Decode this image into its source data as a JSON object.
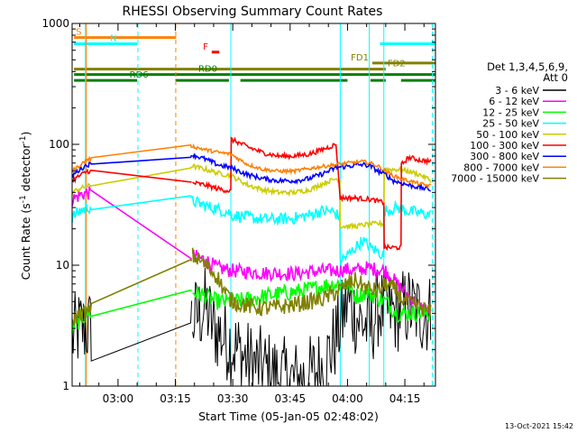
{
  "chart_data": {
    "type": "line",
    "title": "RHESSI Observing Summary Count Rates",
    "xlabel": "Start Time (05-Jan-05 02:48:02)",
    "ylabel_main": "Count Rate (s",
    "ylabel_exp1": "-1",
    "ylabel_mid": " detector",
    "ylabel_exp2": "-1",
    "ylabel_end": ")",
    "yscale": "log",
    "ylim": [
      1,
      1000
    ],
    "xlim_min": [
      168,
      263
    ],
    "x_ticks": [
      {
        "min": 180,
        "label": "03:00"
      },
      {
        "min": 195,
        "label": "03:15"
      },
      {
        "min": 210,
        "label": "03:30"
      },
      {
        "min": 225,
        "label": "03:45"
      },
      {
        "min": 240,
        "label": "04:00"
      },
      {
        "min": 255,
        "label": "04:15"
      }
    ],
    "y_ticks": [
      {
        "v": 1,
        "label": "1"
      },
      {
        "v": 10,
        "label": "10"
      },
      {
        "v": 100,
        "label": "100"
      },
      {
        "v": 1000,
        "label": "1000"
      }
    ],
    "legend_title_1": "Det 1,3,4,5,6,9,",
    "legend_title_2": "Att 0",
    "series": [
      {
        "name": "3 - 6 keV",
        "color": "#000000",
        "points": [
          [
            168,
            2.5
          ],
          [
            170,
            3
          ],
          [
            172,
            3
          ],
          [
            199.5,
            3.5
          ],
          [
            203,
            4.5
          ],
          [
            205,
            3
          ],
          [
            208,
            2.5
          ],
          [
            211,
            2
          ],
          [
            214,
            1.6
          ],
          [
            218,
            1.4
          ],
          [
            222,
            1.2
          ],
          [
            226,
            1.1
          ],
          [
            230,
            1.2
          ],
          [
            234,
            1.5
          ],
          [
            237,
            2.5
          ],
          [
            240,
            5
          ],
          [
            243,
            3.5
          ],
          [
            246,
            3
          ],
          [
            248,
            4.5
          ],
          [
            252,
            4
          ],
          [
            256,
            4.5
          ],
          [
            259,
            4
          ],
          [
            262,
            4
          ]
        ]
      },
      {
        "name": "6 - 12 keV",
        "color": "#ff00ff",
        "points": [
          [
            168,
            35
          ],
          [
            170,
            38
          ],
          [
            172,
            40
          ],
          [
            199.5,
            12
          ],
          [
            203,
            11
          ],
          [
            206,
            9.5
          ],
          [
            210,
            9
          ],
          [
            214,
            8.8
          ],
          [
            218,
            8.6
          ],
          [
            222,
            8.6
          ],
          [
            226,
            8.5
          ],
          [
            230,
            8.8
          ],
          [
            234,
            9
          ],
          [
            237,
            9
          ],
          [
            240,
            9.2
          ],
          [
            242,
            9
          ],
          [
            245,
            9.5
          ],
          [
            250,
            9
          ],
          [
            253,
            7
          ],
          [
            255,
            6
          ],
          [
            259,
            4.5
          ],
          [
            262,
            4
          ]
        ]
      },
      {
        "name": "12 - 25 keV",
        "color": "#00ff00",
        "points": [
          [
            168,
            3
          ],
          [
            170,
            3.5
          ],
          [
            172,
            4
          ],
          [
            199.5,
            6
          ],
          [
            203,
            5.5
          ],
          [
            206,
            5
          ],
          [
            210,
            5
          ],
          [
            214,
            5.2
          ],
          [
            218,
            5.5
          ],
          [
            222,
            5.8
          ],
          [
            226,
            6
          ],
          [
            230,
            6.3
          ],
          [
            234,
            6.8
          ],
          [
            237,
            7
          ],
          [
            240,
            7
          ],
          [
            242,
            5.5
          ],
          [
            245,
            6
          ],
          [
            250,
            5
          ],
          [
            253,
            4
          ],
          [
            255,
            4
          ],
          [
            259,
            4
          ],
          [
            262,
            4
          ]
        ]
      },
      {
        "name": "25 - 50 keV",
        "color": "#00ffff",
        "points": [
          [
            168,
            25
          ],
          [
            170,
            28
          ],
          [
            172,
            30
          ],
          [
            199.5,
            34
          ],
          [
            203,
            31
          ],
          [
            206,
            29
          ],
          [
            209.5,
            27
          ],
          [
            209.6,
            26
          ],
          [
            214,
            25
          ],
          [
            218,
            24
          ],
          [
            222,
            24
          ],
          [
            226,
            24.5
          ],
          [
            230,
            26
          ],
          [
            233,
            28
          ],
          [
            236,
            28
          ],
          [
            238,
            25
          ],
          [
            238.1,
            11
          ],
          [
            240,
            12
          ],
          [
            242,
            14
          ],
          [
            244,
            16
          ],
          [
            246,
            14
          ],
          [
            248,
            13
          ],
          [
            249.5,
            12
          ],
          [
            249.6,
            28
          ],
          [
            253,
            30
          ],
          [
            256,
            28
          ],
          [
            259,
            27
          ],
          [
            262,
            26
          ]
        ]
      },
      {
        "name": "50 - 100 keV",
        "color": "#cccc00",
        "points": [
          [
            168,
            40
          ],
          [
            170,
            43
          ],
          [
            172,
            45
          ],
          [
            199.5,
            66
          ],
          [
            203,
            62
          ],
          [
            206,
            58
          ],
          [
            209.5,
            55
          ],
          [
            214,
            46
          ],
          [
            218,
            42
          ],
          [
            222,
            40
          ],
          [
            226,
            40
          ],
          [
            230,
            42
          ],
          [
            234,
            48
          ],
          [
            237,
            52
          ],
          [
            238,
            50
          ],
          [
            238.1,
            21
          ],
          [
            242,
            21
          ],
          [
            246,
            22
          ],
          [
            249.5,
            22
          ],
          [
            249.6,
            62
          ],
          [
            253,
            62
          ],
          [
            256,
            60
          ],
          [
            259,
            56
          ],
          [
            262,
            50
          ]
        ]
      },
      {
        "name": "100 - 300 keV",
        "color": "#ff0000",
        "points": [
          [
            168,
            50
          ],
          [
            170,
            55
          ],
          [
            172,
            60
          ],
          [
            199.5,
            48
          ],
          [
            203,
            46
          ],
          [
            206,
            43
          ],
          [
            209.5,
            41
          ],
          [
            209.6,
            110
          ],
          [
            214,
            95
          ],
          [
            218,
            85
          ],
          [
            222,
            80
          ],
          [
            226,
            80
          ],
          [
            230,
            83
          ],
          [
            234,
            92
          ],
          [
            237,
            100
          ],
          [
            238.1,
            36
          ],
          [
            242,
            36
          ],
          [
            246,
            35
          ],
          [
            249.5,
            33
          ],
          [
            249.6,
            14
          ],
          [
            253,
            14
          ],
          [
            254,
            14
          ],
          [
            254.1,
            68
          ],
          [
            256,
            78
          ],
          [
            259,
            74
          ],
          [
            262,
            72
          ]
        ]
      },
      {
        "name": "300 - 800 keV",
        "color": "#0000ff",
        "points": [
          [
            168,
            55
          ],
          [
            170,
            62
          ],
          [
            172,
            68
          ],
          [
            199.5,
            82
          ],
          [
            203,
            75
          ],
          [
            206,
            68
          ],
          [
            209.5,
            64
          ],
          [
            214,
            56
          ],
          [
            218,
            52
          ],
          [
            222,
            50
          ],
          [
            226,
            50
          ],
          [
            230,
            52
          ],
          [
            234,
            58
          ],
          [
            237,
            64
          ],
          [
            240,
            66
          ],
          [
            244,
            68
          ],
          [
            246,
            66
          ],
          [
            248,
            60
          ],
          [
            250,
            56
          ],
          [
            252,
            50
          ],
          [
            254,
            48
          ],
          [
            256,
            46
          ],
          [
            259,
            44
          ],
          [
            262,
            42
          ]
        ]
      },
      {
        "name": "800 - 7000 keV",
        "color": "#ff8000",
        "points": [
          [
            168,
            60
          ],
          [
            170,
            67
          ],
          [
            172,
            75
          ],
          [
            199.5,
            96
          ],
          [
            203,
            90
          ],
          [
            206,
            86
          ],
          [
            209.5,
            83
          ],
          [
            214,
            68
          ],
          [
            218,
            62
          ],
          [
            222,
            60
          ],
          [
            226,
            60
          ],
          [
            230,
            63
          ],
          [
            234,
            66
          ],
          [
            237,
            68
          ],
          [
            240,
            70
          ],
          [
            244,
            72
          ],
          [
            246,
            70
          ],
          [
            248,
            66
          ],
          [
            250,
            60
          ],
          [
            252,
            55
          ],
          [
            254,
            52
          ],
          [
            256,
            50
          ],
          [
            259,
            47
          ],
          [
            262,
            45
          ]
        ]
      },
      {
        "name": "7000 - 15000 keV",
        "color": "#808000",
        "points": [
          [
            168,
            3.5
          ],
          [
            170,
            4
          ],
          [
            172,
            4
          ],
          [
            199.5,
            12
          ],
          [
            203,
            10
          ],
          [
            206,
            8
          ],
          [
            208,
            6
          ],
          [
            210,
            5
          ],
          [
            214,
            4.6
          ],
          [
            218,
            4.4
          ],
          [
            222,
            4.5
          ],
          [
            226,
            4.7
          ],
          [
            230,
            5
          ],
          [
            234,
            5.3
          ],
          [
            237,
            6
          ],
          [
            240,
            7
          ],
          [
            242,
            7.5
          ],
          [
            245,
            6.5
          ],
          [
            248,
            6
          ],
          [
            250,
            7
          ],
          [
            253,
            6
          ],
          [
            255,
            5
          ],
          [
            259,
            4.5
          ],
          [
            262,
            4
          ]
        ]
      }
    ],
    "status_bars": [
      {
        "label": "S",
        "color": "#ff8000",
        "y_frac": 0.961,
        "segments": [
          [
            168.5,
            195.2
          ]
        ]
      },
      {
        "label": "N",
        "color": "#00ffff",
        "y_frac": 0.944,
        "segments": [
          [
            168.5,
            185
          ],
          [
            248.5,
            263
          ]
        ]
      },
      {
        "label": "F",
        "color": "#ff0000",
        "y_frac": 0.921,
        "segments": [
          [
            204.5,
            206.5
          ]
        ]
      },
      {
        "label": "FD1",
        "color": "#808000",
        "y_frac": 0.891,
        "segments": [
          [
            246.5,
            263
          ]
        ]
      },
      {
        "label": "FD2",
        "color": "#808000",
        "y_frac": 0.874,
        "segments": [
          [
            168.5,
            250
          ]
        ]
      },
      {
        "label": "RD0",
        "color": "#008000",
        "y_frac": 0.859,
        "segments": [
          [
            168.5,
            263
          ]
        ]
      },
      {
        "label": "RD6",
        "color": "#008000",
        "y_frac": 0.843,
        "segments": [
          [
            168.5,
            185
          ],
          [
            195,
            209
          ],
          [
            212,
            240
          ],
          [
            246,
            250
          ],
          [
            254,
            263
          ]
        ]
      }
    ],
    "vlines": [
      {
        "min": 171.5,
        "color": "#00ffff",
        "dash": false
      },
      {
        "min": 171.7,
        "color": "#ff8000",
        "dash": false
      },
      {
        "min": 185.2,
        "color": "#00ffff",
        "dash": true
      },
      {
        "min": 195.1,
        "color": "#ff8000",
        "dash": true
      },
      {
        "min": 209.5,
        "color": "#00ffff",
        "dash": false
      },
      {
        "min": 238.1,
        "color": "#00ffff",
        "dash": false
      },
      {
        "min": 245.7,
        "color": "#00ffff",
        "dash": false
      },
      {
        "min": 249.5,
        "color": "#00ffff",
        "dash": false
      },
      {
        "min": 262.2,
        "color": "#00ffff",
        "dash": true
      }
    ],
    "timestamp": "13-Oct-2021 15:42"
  }
}
